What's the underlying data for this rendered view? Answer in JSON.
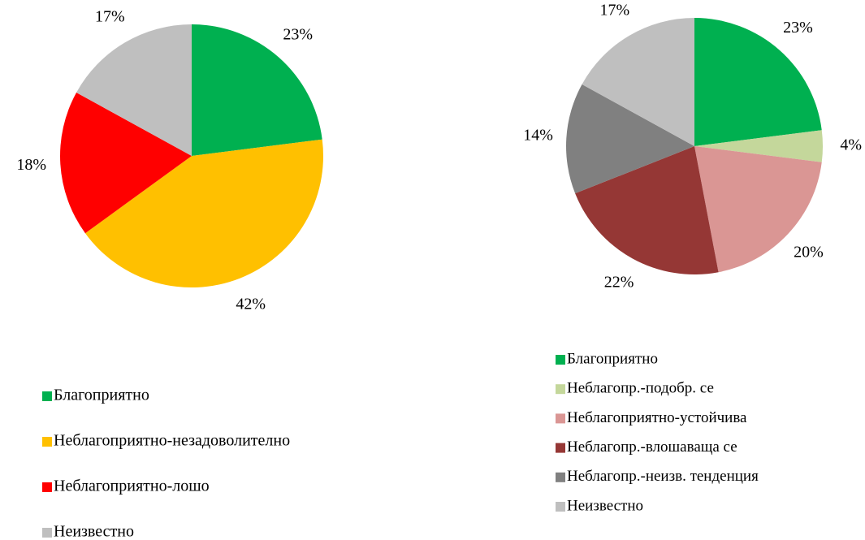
{
  "chart_data": [
    {
      "type": "pie",
      "categories": [
        "Благоприятно",
        "Неблагоприятно-незадоволително",
        "Неблагоприятно-лошо",
        "Неизвестно"
      ],
      "values": [
        23,
        42,
        18,
        17
      ],
      "value_labels": [
        "23%",
        "42%",
        "18%",
        "17%"
      ],
      "colors": [
        "#00b050",
        "#ffc000",
        "#ff0000",
        "#bfbfbf"
      ]
    },
    {
      "type": "pie",
      "categories": [
        "Благоприятно",
        "Неблагопр.-подобр. се",
        "Неблагоприятно-устойчива",
        "Неблагопр.-влошаваща се",
        "Неблагопр.-неизв. тенденция",
        "Неизвестно"
      ],
      "values": [
        23,
        4,
        20,
        22,
        14,
        17
      ],
      "value_labels": [
        "23%",
        "4%",
        "20%",
        "22%",
        "14%",
        "17%"
      ],
      "colors": [
        "#00b050",
        "#c4d79b",
        "#da9694",
        "#953735",
        "#808080",
        "#bfbfbf"
      ]
    }
  ]
}
